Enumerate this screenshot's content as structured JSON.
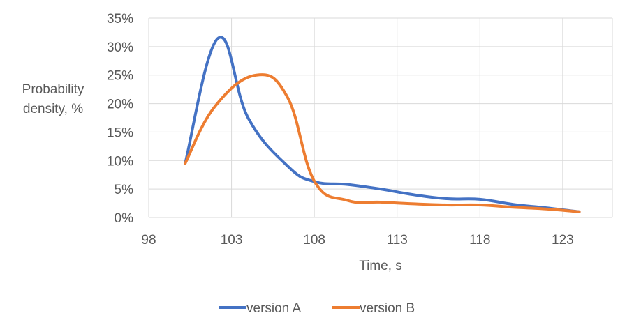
{
  "chart_data": {
    "type": "line",
    "xlabel": "Time, s",
    "ylabel": [
      "Probability",
      "density, %"
    ],
    "xlim": [
      98,
      126
    ],
    "ylim": [
      0,
      35
    ],
    "x_ticks": [
      98,
      103,
      108,
      113,
      118,
      123
    ],
    "x_tick_labels": [
      "98",
      "103",
      "108",
      "113",
      "118",
      "123"
    ],
    "y_ticks": [
      0,
      5,
      10,
      15,
      20,
      25,
      30,
      35
    ],
    "y_tick_labels": [
      "0%",
      "5%",
      "10%",
      "15%",
      "20%",
      "25%",
      "30%",
      "35%"
    ],
    "grid": "vertical and horizontal",
    "legend_position": "bottom",
    "series": [
      {
        "name": "version A",
        "color": "#4472C4",
        "points": [
          [
            100.2,
            9.5
          ],
          [
            102.2,
            31.5
          ],
          [
            104,
            17.5
          ],
          [
            106.4,
            9
          ],
          [
            108,
            6.3
          ],
          [
            110,
            5.8
          ],
          [
            112,
            5
          ],
          [
            114,
            4
          ],
          [
            116,
            3.3
          ],
          [
            118,
            3.2
          ],
          [
            120,
            2.3
          ],
          [
            122,
            1.7
          ],
          [
            124,
            1
          ]
        ]
      },
      {
        "name": "version B",
        "color": "#ED7D31",
        "points": [
          [
            100.2,
            9.5
          ],
          [
            102,
            19.5
          ],
          [
            104.5,
            25
          ],
          [
            106.4,
            21
          ],
          [
            108,
            6.4
          ],
          [
            110,
            3
          ],
          [
            112,
            2.7
          ],
          [
            114,
            2.4
          ],
          [
            116,
            2.2
          ],
          [
            118,
            2.2
          ],
          [
            120,
            1.8
          ],
          [
            122,
            1.5
          ],
          [
            124,
            1
          ]
        ]
      }
    ]
  }
}
